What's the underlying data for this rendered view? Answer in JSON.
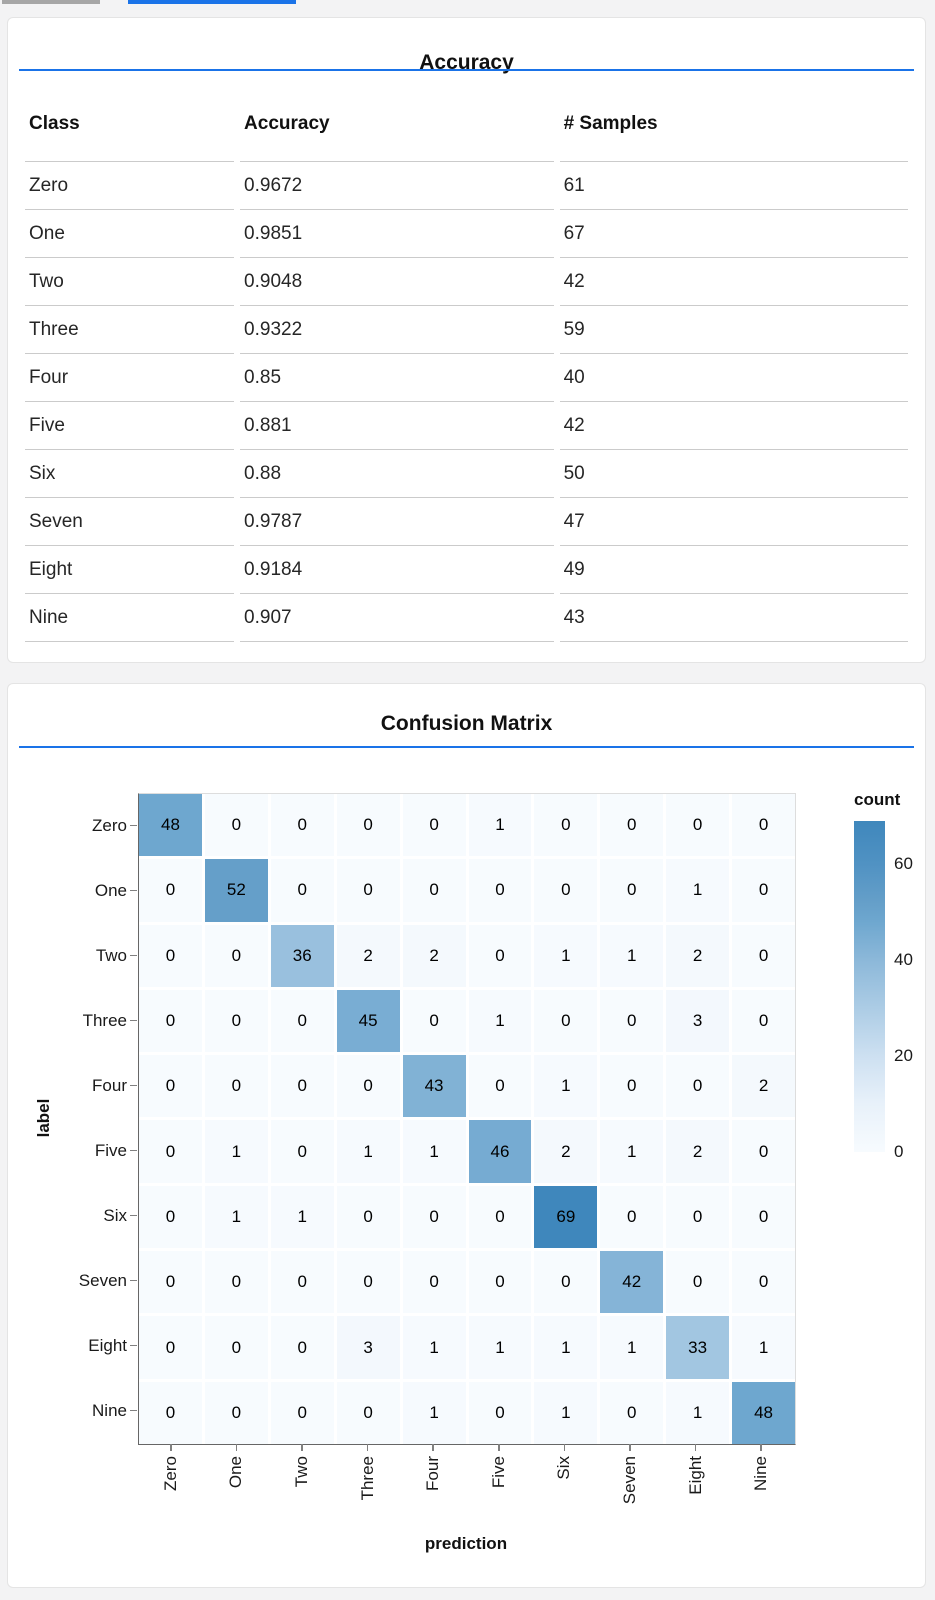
{
  "page": {
    "accent_blue": "#1a73e8",
    "topbar_gray": "#a6a6a6"
  },
  "accuracy_card": {
    "title": "Accuracy",
    "columns": [
      "Class",
      "Accuracy",
      "# Samples"
    ],
    "rows": [
      [
        "Zero",
        "0.9672",
        "61"
      ],
      [
        "One",
        "0.9851",
        "67"
      ],
      [
        "Two",
        "0.9048",
        "42"
      ],
      [
        "Three",
        "0.9322",
        "59"
      ],
      [
        "Four",
        "0.85",
        "40"
      ],
      [
        "Five",
        "0.881",
        "42"
      ],
      [
        "Six",
        "0.88",
        "50"
      ],
      [
        "Seven",
        "0.9787",
        "47"
      ],
      [
        "Eight",
        "0.9184",
        "49"
      ],
      [
        "Nine",
        "0.907",
        "43"
      ]
    ]
  },
  "chart_data": {
    "type": "heatmap",
    "title": "Confusion Matrix",
    "xlabel": "prediction",
    "ylabel": "label",
    "x_categories": [
      "Zero",
      "One",
      "Two",
      "Three",
      "Four",
      "Five",
      "Six",
      "Seven",
      "Eight",
      "Nine"
    ],
    "y_categories": [
      "Zero",
      "One",
      "Two",
      "Three",
      "Four",
      "Five",
      "Six",
      "Seven",
      "Eight",
      "Nine"
    ],
    "matrix": [
      [
        48,
        0,
        0,
        0,
        0,
        1,
        0,
        0,
        0,
        0
      ],
      [
        0,
        52,
        0,
        0,
        0,
        0,
        0,
        0,
        1,
        0
      ],
      [
        0,
        0,
        36,
        2,
        2,
        0,
        1,
        1,
        2,
        0
      ],
      [
        0,
        0,
        0,
        45,
        0,
        1,
        0,
        0,
        3,
        0
      ],
      [
        0,
        0,
        0,
        0,
        43,
        0,
        1,
        0,
        0,
        2
      ],
      [
        0,
        1,
        0,
        1,
        1,
        46,
        2,
        1,
        2,
        0
      ],
      [
        0,
        1,
        1,
        0,
        0,
        0,
        69,
        0,
        0,
        0
      ],
      [
        0,
        0,
        0,
        0,
        0,
        0,
        0,
        42,
        0,
        0
      ],
      [
        0,
        0,
        0,
        3,
        1,
        1,
        1,
        1,
        33,
        1
      ],
      [
        0,
        0,
        0,
        0,
        1,
        0,
        1,
        0,
        1,
        48
      ]
    ],
    "legend": {
      "title": "count",
      "ticks": [
        0,
        20,
        40,
        60
      ],
      "domain": [
        0,
        69
      ]
    },
    "colormap_stops": [
      [
        0,
        "#f7fbfe"
      ],
      [
        10,
        "#e8f1fa"
      ],
      [
        20,
        "#cde0f1"
      ],
      [
        30,
        "#accce5"
      ],
      [
        40,
        "#8cb8d9"
      ],
      [
        48,
        "#6ea7cf"
      ],
      [
        52,
        "#659fc9"
      ],
      [
        60,
        "#5092c3"
      ],
      [
        69,
        "#3f87bc"
      ]
    ],
    "grid": true,
    "legend_position": "right"
  }
}
